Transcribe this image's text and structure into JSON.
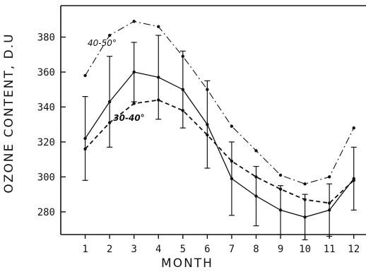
{
  "chart_data": {
    "type": "line",
    "title": "",
    "xlabel": "MONTH",
    "ylabel": "OZONE CONTENT, D.U",
    "x": [
      1,
      2,
      3,
      4,
      5,
      6,
      7,
      8,
      9,
      10,
      11,
      12
    ],
    "xlim": [
      0,
      12.5
    ],
    "ylim": [
      267,
      398
    ],
    "yticks": [
      280,
      300,
      320,
      340,
      360,
      380
    ],
    "grid": false,
    "legend": "none",
    "series": [
      {
        "name": "40-50°",
        "style": "dash-dot",
        "values": [
          358,
          381,
          389,
          386,
          369,
          350,
          329,
          315,
          301,
          296,
          300,
          328
        ]
      },
      {
        "name": "",
        "style": "solid",
        "values": [
          322,
          343,
          360,
          357,
          350,
          330,
          299,
          289,
          281,
          277,
          281,
          299
        ],
        "error": [
          24,
          26,
          17,
          24,
          22,
          25,
          21,
          17,
          14,
          13,
          15,
          18
        ]
      },
      {
        "name": "30-40°",
        "style": "dashed",
        "values": [
          316,
          331,
          342,
          344,
          338,
          324,
          309,
          300,
          293,
          287,
          285,
          298
        ]
      }
    ]
  }
}
